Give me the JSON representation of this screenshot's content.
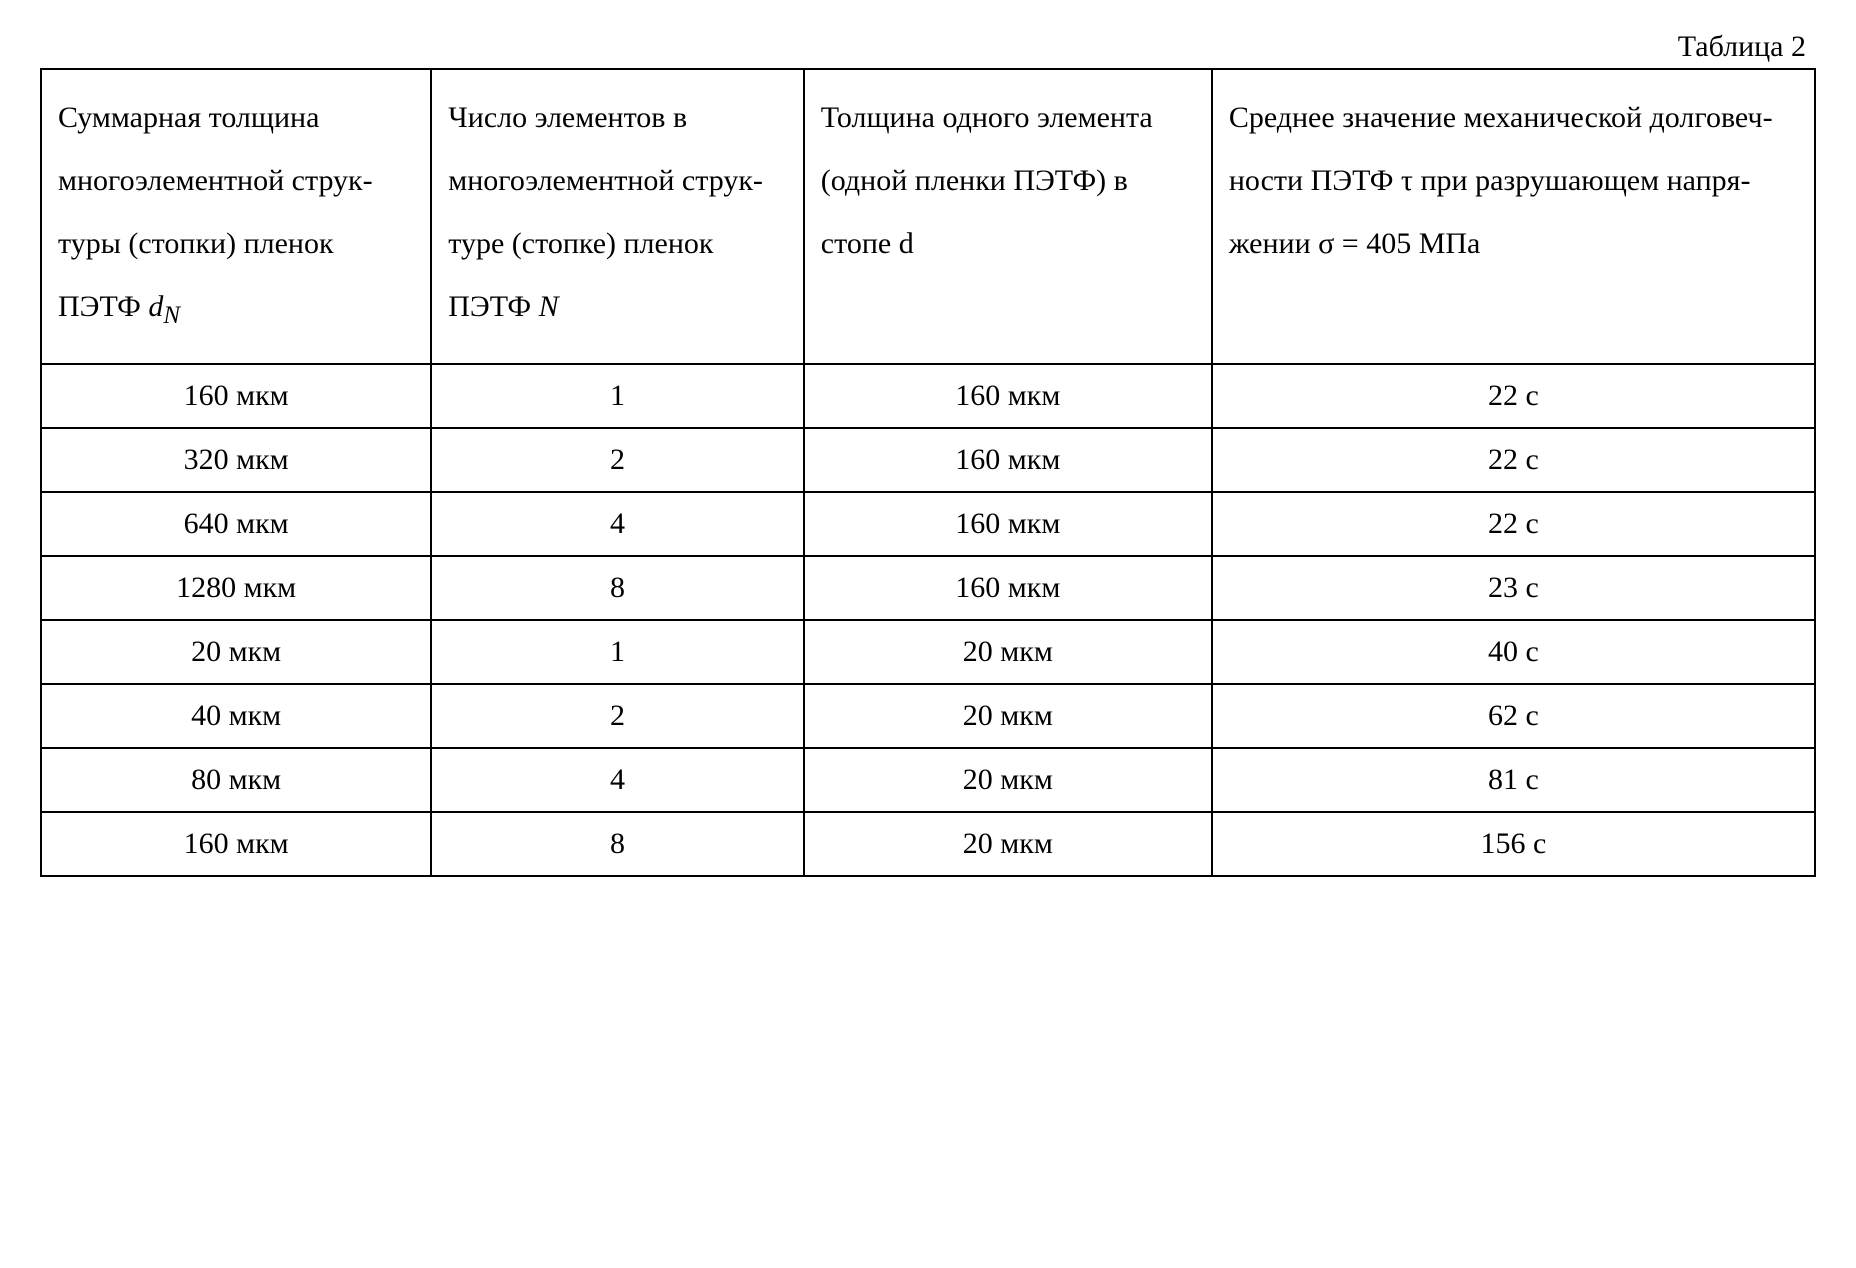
{
  "caption": "Таблица 2",
  "headers": {
    "c1_pre": "Суммарная тол­щина многоэле­ментной струк­туры (стопки) пленок ПЭТФ ",
    "c1_var": "d",
    "c1_sub": "N",
    "c2_pre": "Число элемен­тов в многоэле­ментной струк­туре (стопке) пленок ПЭТФ ",
    "c2_var": "N",
    "c3": "Толщина одного элемента (одной пленки ПЭТФ) в стопе d",
    "c4": "Среднее значение ме­ханической долговеч­ности ПЭТФ τ при разрушающем напря­жении σ = 405 МПа"
  },
  "rows": [
    {
      "c1": "160 мкм",
      "c2": "1",
      "c3": "160 мкм",
      "c4": "22 с"
    },
    {
      "c1": "320 мкм",
      "c2": "2",
      "c3": "160 мкм",
      "c4": "22 с"
    },
    {
      "c1": "640 мкм",
      "c2": "4",
      "c3": "160 мкм",
      "c4": "22 с"
    },
    {
      "c1": "1280 мкм",
      "c2": "8",
      "c3": "160 мкм",
      "c4": "23 с"
    },
    {
      "c1": "20 мкм",
      "c2": "1",
      "c3": "20 мкм",
      "c4": "40 с"
    },
    {
      "c1": "40 мкм",
      "c2": "2",
      "c3": "20 мкм",
      "c4": "62 с"
    },
    {
      "c1": "80 мкм",
      "c2": "4",
      "c3": "20 мкм",
      "c4": "81 с"
    },
    {
      "c1": "160 мкм",
      "c2": "8",
      "c3": "20 мкм",
      "c4": "156 с"
    }
  ]
}
